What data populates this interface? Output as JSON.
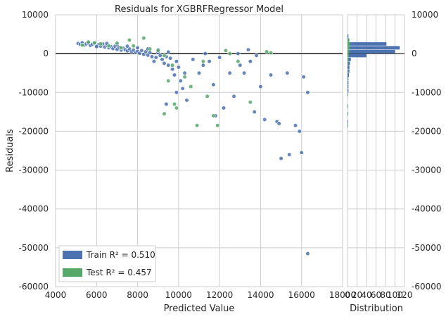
{
  "chart_data": {
    "type": "scatter",
    "title": "Residuals for XGBRFRegressor Model",
    "xlabel": "Predicted Value",
    "ylabel": "Residuals",
    "xlim": [
      4000,
      18000
    ],
    "ylim": [
      -60000,
      10000
    ],
    "xticks": [
      "4000",
      "6000",
      "8000",
      "10000",
      "12000",
      "14000",
      "16000",
      "18000"
    ],
    "yticks": [
      "10000",
      "0",
      "-10000",
      "-20000",
      "-30000",
      "-40000",
      "-50000",
      "-60000"
    ],
    "grid": true,
    "legend_position": "lower-left",
    "zero_line": 0,
    "colors": {
      "train": "#4c72b0",
      "test": "#55a868",
      "zero_line": "#262626",
      "grid": "#cccccc"
    },
    "series": [
      {
        "name": "Train",
        "legend_label": "Train R² = 0.510",
        "color": "#4c72b0",
        "points": [
          [
            5100,
            2600
          ],
          [
            5200,
            2400
          ],
          [
            5300,
            2800
          ],
          [
            5400,
            2200
          ],
          [
            5500,
            2500
          ],
          [
            5600,
            2700
          ],
          [
            5700,
            2100
          ],
          [
            5800,
            2400
          ],
          [
            5900,
            2600
          ],
          [
            6000,
            2000
          ],
          [
            6100,
            2300
          ],
          [
            6200,
            1900
          ],
          [
            6300,
            2500
          ],
          [
            6400,
            1700
          ],
          [
            6500,
            2100
          ],
          [
            6600,
            1500
          ],
          [
            6700,
            1800
          ],
          [
            6800,
            1300
          ],
          [
            6900,
            1900
          ],
          [
            7000,
            1100
          ],
          [
            7100,
            1600
          ],
          [
            7200,
            900
          ],
          [
            7300,
            1400
          ],
          [
            7400,
            1000
          ],
          [
            7500,
            700
          ],
          [
            7600,
            1200
          ],
          [
            7700,
            500
          ],
          [
            7800,
            900
          ],
          [
            7900,
            300
          ],
          [
            8000,
            600
          ],
          [
            8100,
            100
          ],
          [
            8200,
            800
          ],
          [
            8300,
            -200
          ],
          [
            8400,
            500
          ],
          [
            8500,
            -400
          ],
          [
            8600,
            300
          ],
          [
            8700,
            -800
          ],
          [
            8800,
            -2000
          ],
          [
            8900,
            -1000
          ],
          [
            9000,
            200
          ],
          [
            9100,
            -500
          ],
          [
            9200,
            -1500
          ],
          [
            9300,
            -2500
          ],
          [
            9400,
            -800
          ],
          [
            9500,
            -3000
          ],
          [
            9600,
            -1200
          ],
          [
            9700,
            -4000
          ],
          [
            9800,
            -5500
          ],
          [
            9900,
            -2000
          ],
          [
            10000,
            -3500
          ],
          [
            10100,
            -7000
          ],
          [
            10200,
            -9000
          ],
          [
            10300,
            -5000
          ],
          [
            10400,
            -12000
          ],
          [
            9400,
            -13000
          ],
          [
            9900,
            -10000
          ],
          [
            10700,
            -1500
          ],
          [
            11000,
            -5000
          ],
          [
            11200,
            -3000
          ],
          [
            11300,
            0
          ],
          [
            11500,
            -2000
          ],
          [
            11700,
            -8000
          ],
          [
            11800,
            -16000
          ],
          [
            12000,
            -1000
          ],
          [
            12200,
            -14000
          ],
          [
            12500,
            -5000
          ],
          [
            12700,
            -11000
          ],
          [
            12900,
            0
          ],
          [
            13000,
            -3000
          ],
          [
            13200,
            -5000
          ],
          [
            13400,
            1000
          ],
          [
            13500,
            -2000
          ],
          [
            13700,
            -15000
          ],
          [
            13800,
            -500
          ],
          [
            14000,
            -8500
          ],
          [
            14200,
            -17000
          ],
          [
            14500,
            -5500
          ],
          [
            14800,
            -17500
          ],
          [
            14900,
            -18000
          ],
          [
            15000,
            -27000
          ],
          [
            15300,
            -5000
          ],
          [
            15400,
            -26000
          ],
          [
            15700,
            -18500
          ],
          [
            15900,
            -20000
          ],
          [
            16000,
            -25500
          ],
          [
            16100,
            -6000
          ],
          [
            16300,
            -10000
          ],
          [
            16300,
            -51500
          ],
          [
            6000,
            1800
          ],
          [
            6500,
            2600
          ],
          [
            7000,
            2300
          ],
          [
            7500,
            1900
          ],
          [
            8000,
            1500
          ],
          [
            8500,
            1200
          ],
          [
            9000,
            1000
          ],
          [
            9500,
            400
          ]
        ]
      },
      {
        "name": "Test",
        "legend_label": "Test R² = 0.457",
        "color": "#55a868",
        "points": [
          [
            5300,
            2200
          ],
          [
            5600,
            3000
          ],
          [
            5900,
            2800
          ],
          [
            6200,
            2500
          ],
          [
            6600,
            2000
          ],
          [
            7000,
            2700
          ],
          [
            7200,
            1500
          ],
          [
            7600,
            3500
          ],
          [
            7800,
            2000
          ],
          [
            8300,
            4000
          ],
          [
            8600,
            1200
          ],
          [
            9000,
            800
          ],
          [
            9300,
            -500
          ],
          [
            9500,
            -7000
          ],
          [
            9700,
            -3000
          ],
          [
            9800,
            -13000
          ],
          [
            9900,
            -14000
          ],
          [
            9300,
            -15500
          ],
          [
            10300,
            -6000
          ],
          [
            10600,
            -8500
          ],
          [
            10900,
            -18500
          ],
          [
            11200,
            -2000
          ],
          [
            11400,
            -11000
          ],
          [
            11700,
            -16000
          ],
          [
            11900,
            -18500
          ],
          [
            12300,
            800
          ],
          [
            12500,
            0
          ],
          [
            12900,
            -2000
          ],
          [
            13500,
            -12500
          ],
          [
            14300,
            500
          ],
          [
            14500,
            200
          ]
        ]
      }
    ],
    "histogram": {
      "xlabel": "Distribution",
      "xlim": [
        0,
        120
      ],
      "xticks": [
        "0",
        "20",
        "40",
        "60",
        "80",
        "100",
        "120"
      ],
      "y_tick_labels_right": [
        "10000",
        "0",
        "-10000",
        "-20000",
        "-30000",
        "-40000",
        "-50000",
        "-60000"
      ],
      "bins": [
        {
          "y0": 4000,
          "y1": 5000,
          "train": 2,
          "test": 0
        },
        {
          "y0": 3000,
          "y1": 4000,
          "train": 3,
          "test": 4
        },
        {
          "y0": 2000,
          "y1": 3000,
          "train": 82,
          "test": 6
        },
        {
          "y0": 1000,
          "y1": 2000,
          "train": 110,
          "test": 5
        },
        {
          "y0": 0,
          "y1": 1000,
          "train": 100,
          "test": 4
        },
        {
          "y0": -1000,
          "y1": 0,
          "train": 40,
          "test": 3
        },
        {
          "y0": -2000,
          "y1": -1000,
          "train": 7,
          "test": 2
        },
        {
          "y0": -3000,
          "y1": -2000,
          "train": 5,
          "test": 1
        },
        {
          "y0": -4000,
          "y1": -3000,
          "train": 4,
          "test": 0
        },
        {
          "y0": -5000,
          "y1": -4000,
          "train": 4,
          "test": 1
        },
        {
          "y0": -6000,
          "y1": -5000,
          "train": 3,
          "test": 0
        },
        {
          "y0": -7000,
          "y1": -6000,
          "train": 2,
          "test": 1
        },
        {
          "y0": -8000,
          "y1": -7000,
          "train": 2,
          "test": 0
        },
        {
          "y0": -9000,
          "y1": -8000,
          "train": 2,
          "test": 1
        },
        {
          "y0": -10000,
          "y1": -9000,
          "train": 2,
          "test": 0
        },
        {
          "y0": -11000,
          "y1": -10000,
          "train": 1,
          "test": 1
        },
        {
          "y0": -14000,
          "y1": -13000,
          "train": 1,
          "test": 1
        },
        {
          "y0": -16000,
          "y1": -15000,
          "train": 1,
          "test": 1
        },
        {
          "y0": -18000,
          "y1": -17000,
          "train": 1,
          "test": 0
        },
        {
          "y0": -19000,
          "y1": -18000,
          "train": 1,
          "test": 1
        }
      ]
    }
  }
}
